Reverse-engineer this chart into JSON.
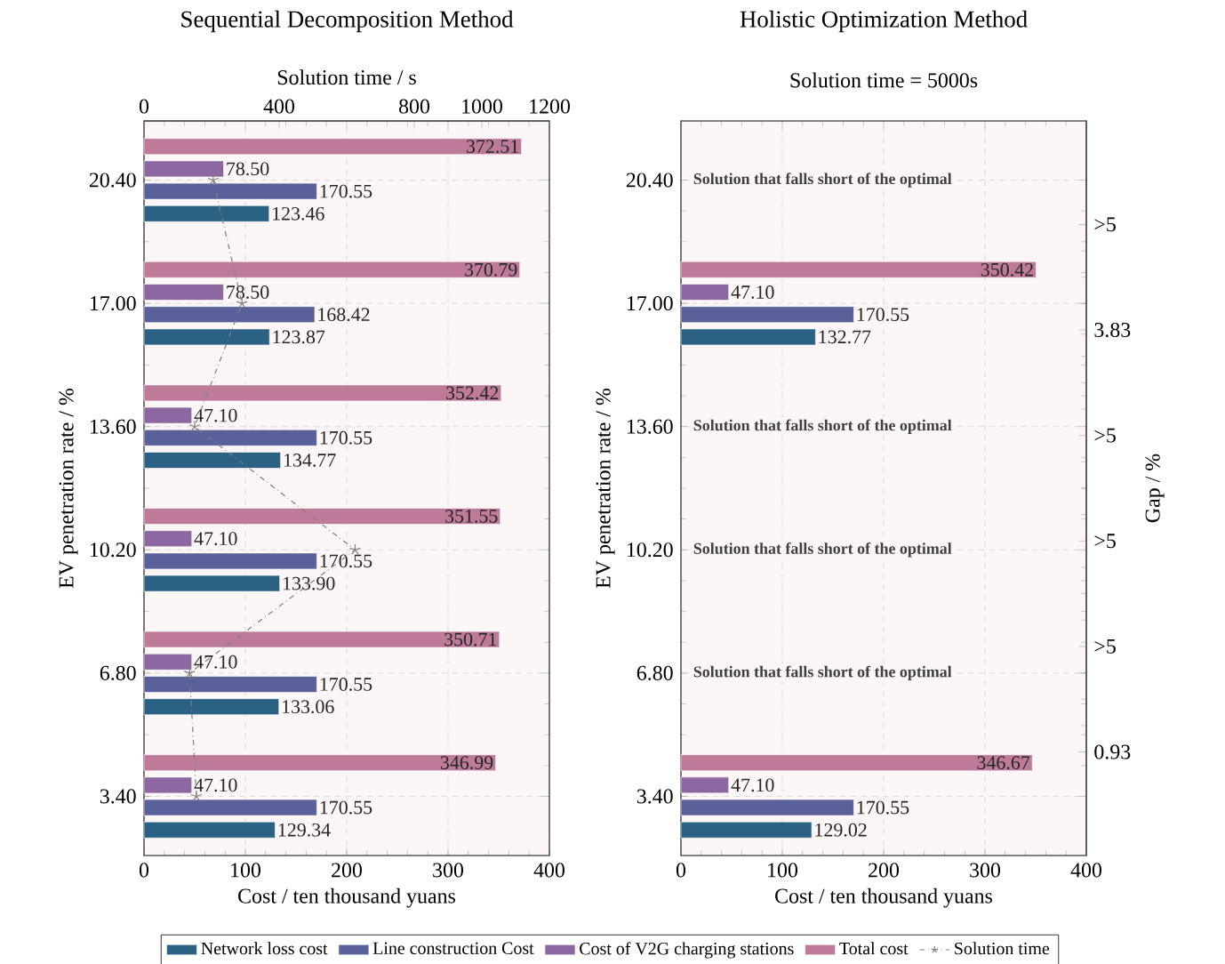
{
  "chart_data": [
    {
      "type": "bar",
      "orientation": "horizontal",
      "title": "Sequential Decomposition Method",
      "xlabel": "Cost / ten thousand yuans",
      "ylabel": "EV penetration rate / %",
      "x2label": "Solution time / s",
      "categories": [
        "20.40",
        "17.00",
        "13.60",
        "10.20",
        "6.80",
        "3.40"
      ],
      "series": [
        {
          "name": "Network loss cost",
          "color": "#2b6283",
          "values": [
            123.46,
            123.87,
            134.77,
            133.9,
            133.06,
            129.34
          ],
          "value_labels": [
            "123.46",
            "123.87",
            "134.77",
            "133.90",
            "133.06",
            "129.34"
          ]
        },
        {
          "name": "Line construction Cost",
          "color": "#59609a",
          "values": [
            170.55,
            168.42,
            170.55,
            170.55,
            170.55,
            170.55
          ],
          "value_labels": [
            "170.55",
            "168.42",
            "170.55",
            "170.55",
            "170.55",
            "170.55"
          ]
        },
        {
          "name": "Cost of V2G charging stations",
          "color": "#8c67a0",
          "values": [
            78.5,
            78.5,
            47.1,
            47.1,
            47.1,
            47.1
          ],
          "value_labels": [
            "78.50",
            "78.50",
            "47.10",
            "47.10",
            "47.10",
            "47.10"
          ]
        },
        {
          "name": "Total cost",
          "color": "#bd7a99",
          "values": [
            372.51,
            370.79,
            352.42,
            351.55,
            350.71,
            346.99
          ],
          "value_labels": [
            "372.51",
            "370.79",
            "352.42",
            "351.55",
            "350.71",
            "346.99"
          ]
        },
        {
          "name": "Solution time",
          "type": "line",
          "axis": "x2",
          "color": "#808080",
          "marker": "cross",
          "line_style": "dashed",
          "values": [
            205,
            290,
            150,
            625,
            135,
            155
          ]
        }
      ],
      "xlim": [
        0,
        400
      ],
      "xticks": [
        0,
        100,
        200,
        300,
        400
      ],
      "x2lim": [
        0,
        1200
      ],
      "x2ticks": [
        0,
        400,
        800,
        1000,
        1200
      ],
      "grid": true,
      "legend": "bottom"
    },
    {
      "type": "bar",
      "orientation": "horizontal",
      "title": "Holistic Optimization Method",
      "subtitle": "Solution time = 5000s",
      "xlabel": "Cost / ten thousand yuans",
      "ylabel": "EV penetration rate / %",
      "y2label": "Gap / %",
      "categories": [
        "20.40",
        "17.00",
        "13.60",
        "10.20",
        "6.80",
        "3.40"
      ],
      "y2_categories": [
        ">5",
        "3.83",
        ">5",
        ">5",
        ">5",
        "0.93"
      ],
      "series": [
        {
          "color": "#2b6283",
          "values": [
            null,
            132.77,
            null,
            null,
            null,
            129.02
          ],
          "value_labels": [
            null,
            "132.77",
            null,
            null,
            null,
            "129.02"
          ]
        },
        {
          "color": "#59609a",
          "values": [
            null,
            170.55,
            null,
            null,
            null,
            170.55
          ],
          "value_labels": [
            null,
            "170.55",
            null,
            null,
            null,
            "170.55"
          ]
        },
        {
          "color": "#8c67a0",
          "values": [
            null,
            47.1,
            null,
            null,
            null,
            47.1
          ],
          "value_labels": [
            null,
            "47.10",
            null,
            null,
            null,
            "47.10"
          ]
        },
        {
          "color": "#bd7a99",
          "values": [
            null,
            350.42,
            null,
            null,
            null,
            346.67
          ],
          "value_labels": [
            null,
            "350.42",
            null,
            null,
            null,
            "346.67"
          ]
        }
      ],
      "annotations": [
        "Solution that falls short of the optimal",
        "Solution that falls short of the optimal",
        "Solution that falls short of the optimal",
        "Solution that falls short of the optimal"
      ],
      "xlim": [
        0,
        400
      ],
      "xticks": [
        0,
        100,
        200,
        300,
        400
      ],
      "grid": true
    }
  ]
}
